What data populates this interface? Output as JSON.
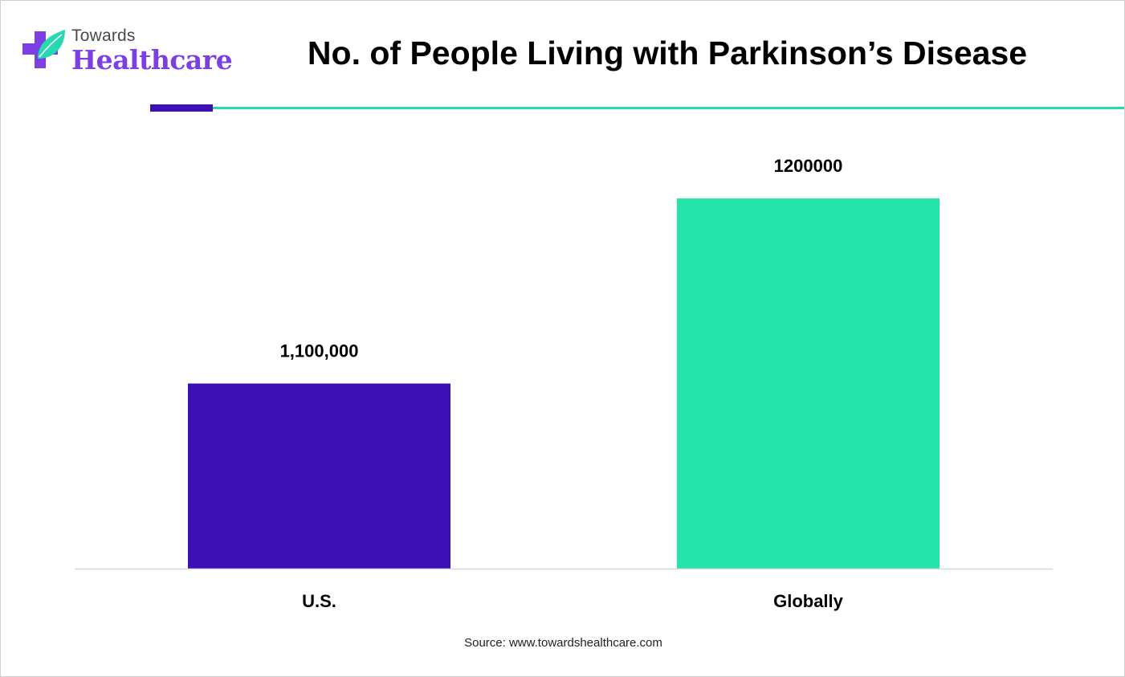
{
  "brand": {
    "small_text": "Towards",
    "big_text": "Healthcare",
    "icon": "medical-cross-leaf-icon",
    "colors": {
      "cross": "#7b3fe4",
      "leaf": "#26d9b0"
    }
  },
  "source": "Source: www.towardshealthcare.com",
  "colors": {
    "accent_dark": "#3d10b5",
    "accent_teal": "#26d9b0",
    "axis": "#d9d9d9",
    "label": "#000000"
  },
  "chart_data": {
    "type": "bar",
    "title": "No. of People Living with Parkinson’s Disease",
    "categories": [
      "U.S.",
      "Globally"
    ],
    "values": [
      1100000,
      1200000
    ],
    "data_labels": [
      "1,100,000",
      "1200000"
    ],
    "bar_colors": [
      "#3d10b5",
      "#26e2ab"
    ],
    "xlabel": "",
    "ylabel": "",
    "ylim": [
      1000000,
      1220000
    ],
    "grid": false,
    "legend": "none"
  }
}
